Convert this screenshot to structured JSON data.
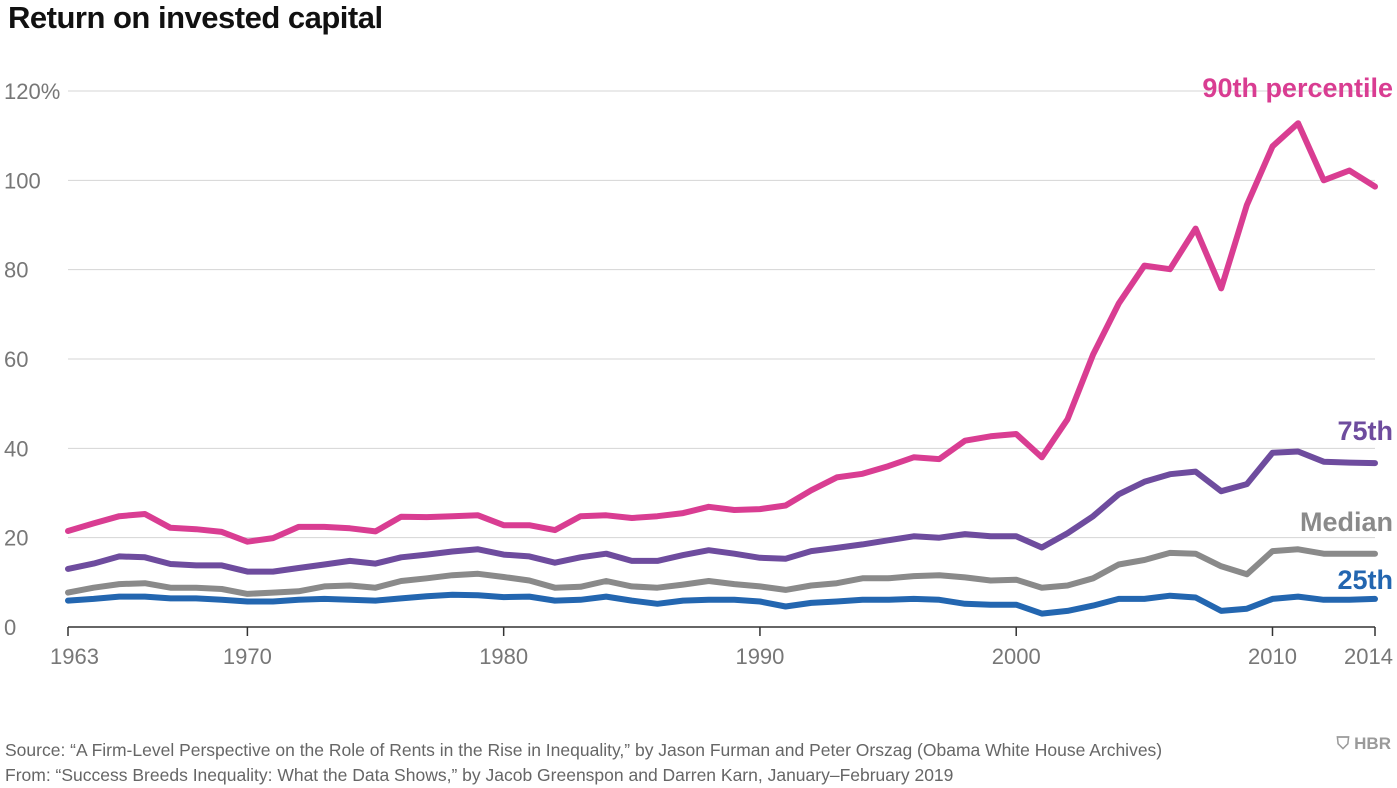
{
  "chart_data": {
    "type": "line",
    "title": "Return on invested capital",
    "x_tick_labels": [
      "1963",
      "1970",
      "1980",
      "1990",
      "2000",
      "2010",
      "2014"
    ],
    "x_ticks": [
      1963,
      1970,
      1980,
      1990,
      2000,
      2010,
      2014
    ],
    "y_tick_labels": [
      "0",
      "20",
      "40",
      "60",
      "80",
      "100",
      "120%"
    ],
    "y_ticks": [
      0,
      20,
      40,
      60,
      80,
      100,
      120
    ],
    "xlim": [
      1963,
      2014
    ],
    "ylim": [
      0,
      120
    ],
    "grid": "horizontal",
    "x": [
      1963,
      1964,
      1965,
      1966,
      1967,
      1968,
      1969,
      1970,
      1971,
      1972,
      1973,
      1974,
      1975,
      1976,
      1977,
      1978,
      1979,
      1980,
      1981,
      1982,
      1983,
      1984,
      1985,
      1986,
      1987,
      1988,
      1989,
      1990,
      1991,
      1992,
      1993,
      1994,
      1995,
      1996,
      1997,
      1998,
      1999,
      2000,
      2001,
      2002,
      2003,
      2004,
      2005,
      2006,
      2007,
      2008,
      2009,
      2010,
      2011,
      2012,
      2013,
      2014
    ],
    "series": [
      {
        "name": "90th percentile",
        "color": "#d93d92",
        "values": [
          21.5,
          23.2,
          24.8,
          25.3,
          22.2,
          21.9,
          21.3,
          19.1,
          19.9,
          22.4,
          22.4,
          22.1,
          21.4,
          24.7,
          24.6,
          24.8,
          25.0,
          22.8,
          22.8,
          21.7,
          24.8,
          25.0,
          24.4,
          24.8,
          25.5,
          26.9,
          26.2,
          26.4,
          27.2,
          30.6,
          33.5,
          34.3,
          36.0,
          38.0,
          37.6,
          41.7,
          42.7,
          43.2,
          38.0,
          46.5,
          61.0,
          72.4,
          80.9,
          80.1,
          89.2,
          75.8,
          94.5,
          107.6,
          112.8,
          100.0,
          102.2,
          98.6
        ]
      },
      {
        "name": "75th",
        "color": "#6e4c9e",
        "values": [
          13.0,
          14.2,
          15.8,
          15.6,
          14.1,
          13.8,
          13.8,
          12.4,
          12.4,
          13.2,
          14.0,
          14.8,
          14.2,
          15.6,
          16.2,
          16.9,
          17.4,
          16.2,
          15.8,
          14.4,
          15.6,
          16.4,
          14.8,
          14.8,
          16.1,
          17.2,
          16.4,
          15.5,
          15.3,
          17.0,
          17.7,
          18.5,
          19.4,
          20.3,
          20.0,
          20.8,
          20.3,
          20.3,
          17.8,
          21.0,
          24.8,
          29.7,
          32.5,
          34.2,
          34.8,
          30.4,
          32.0,
          39.0,
          39.3,
          37.0,
          36.8,
          36.7
        ]
      },
      {
        "name": "Median",
        "color": "#8a8a8a",
        "values": [
          7.7,
          8.8,
          9.6,
          9.8,
          8.8,
          8.8,
          8.5,
          7.4,
          7.7,
          8.0,
          9.1,
          9.3,
          8.8,
          10.3,
          10.9,
          11.6,
          11.9,
          11.2,
          10.4,
          8.8,
          9.0,
          10.3,
          9.1,
          8.8,
          9.5,
          10.3,
          9.6,
          9.1,
          8.3,
          9.3,
          9.8,
          10.9,
          10.9,
          11.4,
          11.6,
          11.1,
          10.4,
          10.6,
          8.8,
          9.3,
          10.9,
          14.0,
          15.0,
          16.6,
          16.4,
          13.6,
          11.8,
          17.0,
          17.4,
          16.4,
          16.4,
          16.4
        ]
      },
      {
        "name": "25th",
        "color": "#2366b0",
        "values": [
          5.9,
          6.3,
          6.8,
          6.8,
          6.4,
          6.4,
          6.1,
          5.7,
          5.7,
          6.1,
          6.3,
          6.1,
          5.9,
          6.4,
          6.9,
          7.2,
          7.1,
          6.7,
          6.8,
          5.9,
          6.1,
          6.8,
          5.9,
          5.2,
          5.9,
          6.1,
          6.1,
          5.7,
          4.6,
          5.4,
          5.7,
          6.1,
          6.1,
          6.3,
          6.1,
          5.2,
          5.0,
          5.0,
          3.0,
          3.6,
          4.8,
          6.3,
          6.3,
          7.0,
          6.6,
          3.6,
          4.1,
          6.3,
          6.8,
          6.1,
          6.1,
          6.3
        ]
      }
    ],
    "source_lines": [
      "Source: “A Firm-Level Perspective on the Role of Rents in the Rise in Inequality,” by Jason Furman and Peter Orszag (Obama White House Archives)",
      "From: “Success Breeds Inequality: What the Data Shows,” by Jacob Greenspon and Darren Karn, January–February 2019"
    ],
    "logo_text": "HBR"
  }
}
